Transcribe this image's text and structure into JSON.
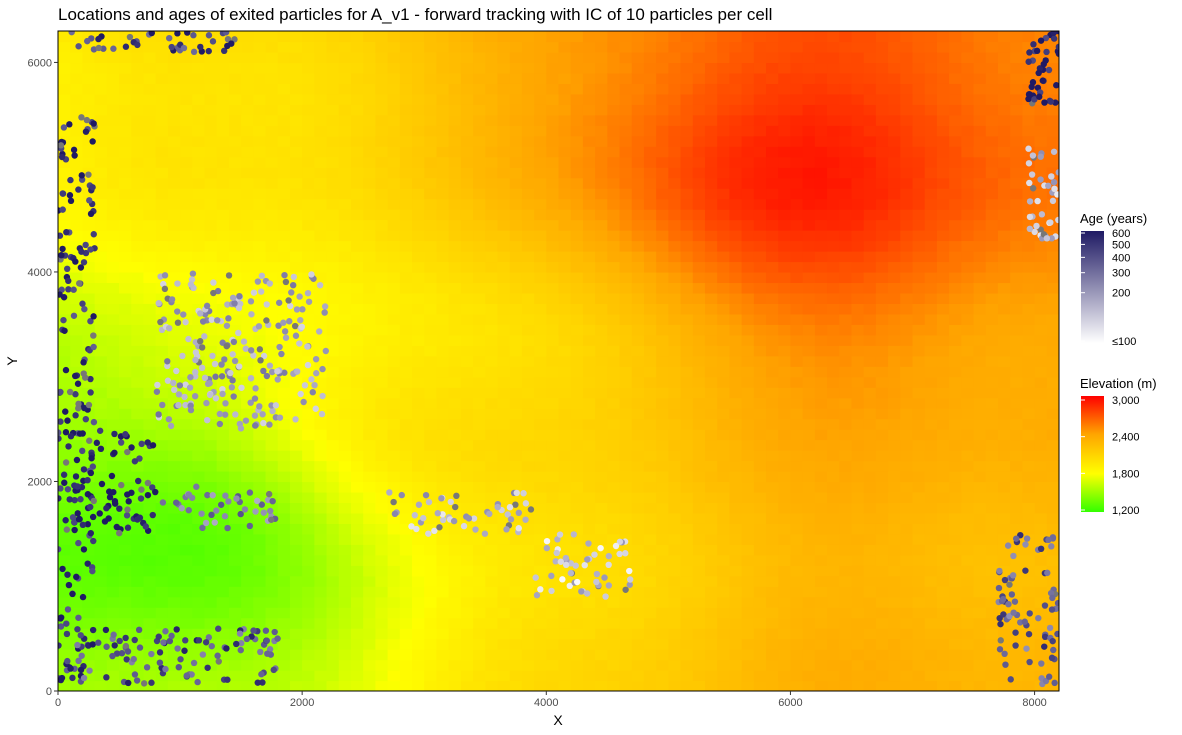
{
  "chart_data": {
    "type": "heatmap",
    "title": "Locations and ages of exited particles for A_v1 - forward tracking with IC of 10 particles per cell",
    "xlabel": "X",
    "ylabel": "Y",
    "xlim": [
      0,
      8200
    ],
    "ylim": [
      0,
      6300
    ],
    "x_ticks": [
      0,
      2000,
      4000,
      6000,
      8000
    ],
    "y_ticks": [
      0,
      2000,
      4000,
      6000
    ],
    "x_tick_labels": [
      "0",
      "2000",
      "4000",
      "6000",
      "8000"
    ],
    "y_tick_labels": [
      "0",
      "2000",
      "4000",
      "6000"
    ],
    "grid": false,
    "raster": {
      "name": "Elevation (m)",
      "colors": [
        "#33ff00",
        "#ffff00",
        "#ffa500",
        "#ff0000"
      ],
      "range": [
        1200,
        3000
      ],
      "approx_values_by_region": [
        {
          "region": "west lowland",
          "x": 800,
          "y": 1500,
          "elevation": 1300
        },
        {
          "region": "central",
          "x": 3000,
          "y": 3000,
          "elevation": 1950
        },
        {
          "region": "northeast ridge",
          "x": 6000,
          "y": 5000,
          "elevation": 2850
        },
        {
          "region": "southeast",
          "x": 7000,
          "y": 1200,
          "elevation": 2300
        }
      ]
    },
    "points": {
      "name": "Age (years)",
      "colors": [
        "#ffffff",
        "#1f1a64"
      ],
      "range": [
        100,
        600
      ],
      "na_color": "#777777",
      "clusters": [
        {
          "region": "top-left edge",
          "x": [
            100,
            1500
          ],
          "y": [
            6100,
            6300
          ],
          "age": 520
        },
        {
          "region": "west edge",
          "x": [
            0,
            300
          ],
          "y": [
            100,
            5500
          ],
          "age": 560
        },
        {
          "region": "west block",
          "x": [
            100,
            800
          ],
          "y": [
            1500,
            2500
          ],
          "age": 600
        },
        {
          "region": "northwest diagonal",
          "x": [
            800,
            2200
          ],
          "y": [
            2500,
            4000
          ],
          "age": 300
        },
        {
          "region": "southwest band",
          "x": [
            850,
            1800
          ],
          "y": [
            1550,
            1950
          ],
          "age": 380
        },
        {
          "region": "bottom-left",
          "x": [
            100,
            1800
          ],
          "y": [
            50,
            600
          ],
          "age": 480
        },
        {
          "region": "central streak",
          "x": [
            2700,
            3900
          ],
          "y": [
            1500,
            1900
          ],
          "age": 260
        },
        {
          "region": "east streak",
          "x": [
            3900,
            4700
          ],
          "y": [
            900,
            1500
          ],
          "age": 220
        },
        {
          "region": "right edge top",
          "x": [
            7950,
            8200
          ],
          "y": [
            5600,
            6300
          ],
          "age": 600
        },
        {
          "region": "right edge middle",
          "x": [
            7950,
            8200
          ],
          "y": [
            4300,
            5200
          ],
          "age": 250
        },
        {
          "region": "bottom-right",
          "x": [
            7700,
            8200
          ],
          "y": [
            50,
            1500
          ],
          "age": 450
        }
      ]
    },
    "legends": [
      {
        "title": "Age (years)",
        "labels": [
          "600",
          "500",
          "400",
          "300",
          "200",
          "≤100"
        ],
        "position": "right"
      },
      {
        "title": "Elevation (m)",
        "labels": [
          "3,000",
          "2,400",
          "1,800",
          "1,200"
        ],
        "position": "right"
      }
    ]
  }
}
